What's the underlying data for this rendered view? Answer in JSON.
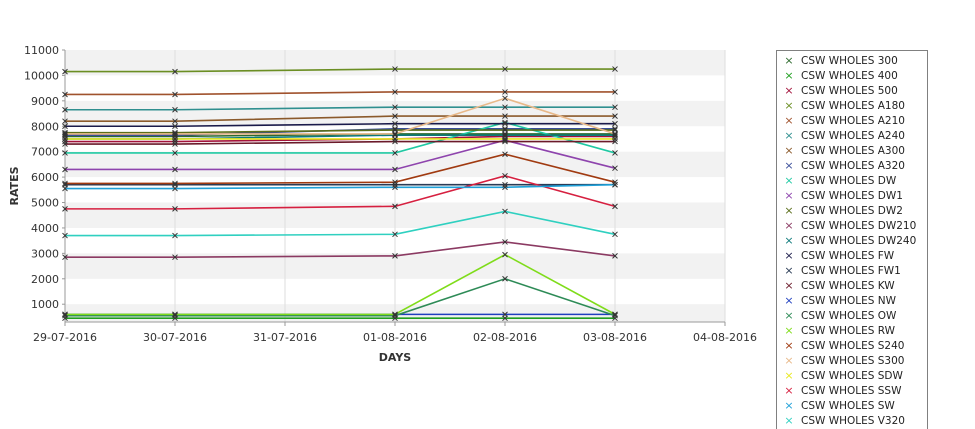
{
  "chart_data": {
    "type": "line",
    "xlabel": "DAYS",
    "ylabel": "RATES",
    "ylim": [
      300,
      11000
    ],
    "yticks": [
      1000,
      2000,
      3000,
      4000,
      5000,
      6000,
      7000,
      8000,
      9000,
      10000,
      11000
    ],
    "x_tick_labels": [
      "29-07-2016",
      "30-07-2016",
      "31-07-2016",
      "01-08-2016",
      "02-08-2016",
      "03-08-2016",
      "04-08-2016"
    ],
    "x_points": [
      "29-07-2016",
      "30-07-2016",
      "01-08-2016",
      "02-08-2016",
      "03-08-2016"
    ],
    "grid": "horizontal-bands",
    "legend_position": "right",
    "series": [
      {
        "name": "CSW WHOLES 300",
        "color": "#2e6b2e",
        "values": [
          7600,
          7600,
          7700,
          7700,
          7700
        ]
      },
      {
        "name": "CSW WHOLES 400",
        "color": "#1f9f1f",
        "values": [
          450,
          450,
          450,
          450,
          450
        ]
      },
      {
        "name": "CSW WHOLES 500",
        "color": "#a3123b",
        "values": [
          7400,
          7400,
          7500,
          7600,
          7600
        ]
      },
      {
        "name": "CSW WHOLES A180",
        "color": "#6b8e23",
        "values": [
          10150,
          10150,
          10250,
          10250,
          10250
        ]
      },
      {
        "name": "CSW WHOLES A210",
        "color": "#a0522d",
        "values": [
          9250,
          9250,
          9350,
          9350,
          9350
        ]
      },
      {
        "name": "CSW WHOLES A240",
        "color": "#2f8f8f",
        "values": [
          8650,
          8650,
          8750,
          8750,
          8750
        ]
      },
      {
        "name": "CSW WHOLES A300",
        "color": "#8b5a2b",
        "values": [
          8200,
          8200,
          8400,
          8400,
          8400
        ]
      },
      {
        "name": "CSW WHOLES A320",
        "color": "#3a4e9a",
        "values": [
          7650,
          7650,
          7900,
          7900,
          7900
        ]
      },
      {
        "name": "CSW WHOLES DW",
        "color": "#20c9a3",
        "values": [
          6950,
          6950,
          6950,
          8150,
          6950
        ]
      },
      {
        "name": "CSW WHOLES DW1",
        "color": "#8e44ad",
        "values": [
          6300,
          6300,
          6300,
          7450,
          6350
        ]
      },
      {
        "name": "CSW WHOLES DW2",
        "color": "#5a6e1a",
        "values": [
          7750,
          7750,
          7850,
          7850,
          7850
        ]
      },
      {
        "name": "CSW WHOLES DW210",
        "color": "#8b3a62",
        "values": [
          2850,
          2850,
          2900,
          3450,
          2900
        ]
      },
      {
        "name": "CSW WHOLES DW240",
        "color": "#0d7a7a",
        "values": [
          7500,
          7500,
          7650,
          7650,
          7650
        ]
      },
      {
        "name": "CSW WHOLES FW",
        "color": "#1a1a4a",
        "values": [
          8000,
          8000,
          8100,
          8100,
          8100
        ]
      },
      {
        "name": "CSW WHOLES FW1",
        "color": "#2a3b55",
        "values": [
          5700,
          5700,
          5700,
          5700,
          5700
        ]
      },
      {
        "name": "CSW WHOLES KW",
        "color": "#6b1a2a",
        "values": [
          7300,
          7300,
          7400,
          7400,
          7400
        ]
      },
      {
        "name": "CSW WHOLES NW",
        "color": "#1f3fbf",
        "values": [
          600,
          600,
          600,
          600,
          600
        ]
      },
      {
        "name": "CSW WHOLES OW",
        "color": "#2e8b57",
        "values": [
          550,
          550,
          550,
          2000,
          550
        ]
      },
      {
        "name": "CSW WHOLES RW",
        "color": "#7fdc1a",
        "values": [
          600,
          600,
          600,
          2950,
          600
        ]
      },
      {
        "name": "CSW WHOLES S240",
        "color": "#a03a10",
        "values": [
          5750,
          5750,
          5800,
          6900,
          5800
        ]
      },
      {
        "name": "CSW WHOLES S300",
        "color": "#e8b888",
        "values": [
          7700,
          7700,
          7700,
          9100,
          7700
        ]
      },
      {
        "name": "CSW WHOLES SDW",
        "color": "#e8e820",
        "values": [
          7500,
          7500,
          7500,
          7500,
          7500
        ]
      },
      {
        "name": "CSW WHOLES SSW",
        "color": "#d62040",
        "values": [
          4750,
          4750,
          4850,
          6050,
          4850
        ]
      },
      {
        "name": "CSW WHOLES SW",
        "color": "#1fa0d8",
        "values": [
          5550,
          5550,
          5600,
          5600,
          5700
        ]
      },
      {
        "name": "CSW WHOLES V320",
        "color": "#2fd0c0",
        "values": [
          3700,
          3700,
          3750,
          4650,
          3750
        ]
      }
    ]
  }
}
